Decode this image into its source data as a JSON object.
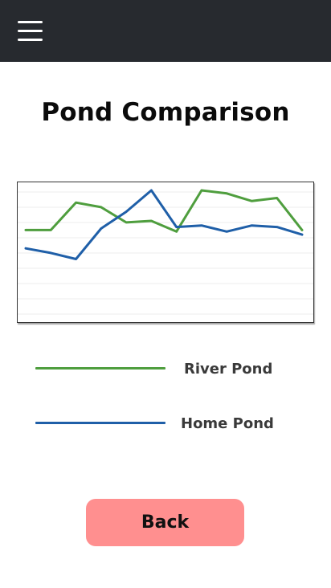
{
  "header": {
    "menu_icon": "hamburger-menu-icon"
  },
  "page": {
    "title": "Pond Comparison"
  },
  "chart_data": {
    "type": "line",
    "x": [
      1,
      2,
      3,
      4,
      5,
      6,
      7,
      8,
      9,
      10,
      11,
      12
    ],
    "ylim": [
      0,
      8
    ],
    "grid": true,
    "series": [
      {
        "name": "River Pond",
        "color": "#4f9e3e",
        "values": [
          5.4,
          5.4,
          7.2,
          6.9,
          5.9,
          6.0,
          5.3,
          8.0,
          7.8,
          7.3,
          7.5,
          5.4
        ]
      },
      {
        "name": "Home Pond",
        "color": "#1f5fa8",
        "values": [
          4.2,
          3.9,
          3.5,
          5.5,
          6.6,
          8.0,
          5.6,
          5.7,
          5.3,
          5.7,
          5.6,
          5.1
        ]
      }
    ]
  },
  "legend": [
    {
      "label": "River Pond",
      "color": "#4f9e3e"
    },
    {
      "label": "Home Pond",
      "color": "#1f5fa8"
    }
  ],
  "actions": {
    "back_label": "Back"
  }
}
